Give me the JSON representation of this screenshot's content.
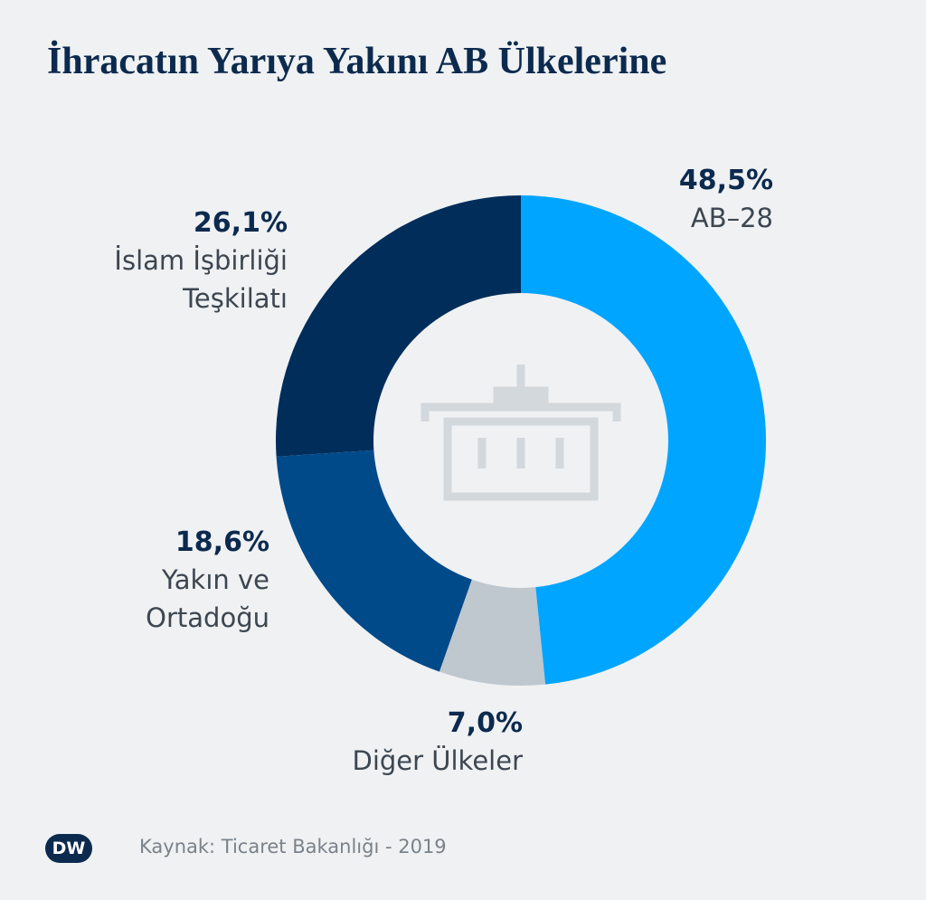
{
  "chart_data": {
    "type": "donut",
    "title": "İhracatın Yarıya Yakını AB Ülkelerine",
    "categories": [
      "AB–28",
      "Diğer Ülkeler",
      "Yakın ve Ortadoğu",
      "İslam İşbirliği Teşkilatı"
    ],
    "values": [
      48.5,
      7.0,
      18.6,
      26.1
    ],
    "value_labels": [
      "48,5%",
      "7,0%",
      "18,6%",
      "26,1%"
    ],
    "colors": [
      "#00a5ff",
      "#bfc7cf",
      "#004a8a",
      "#002d5a"
    ],
    "source": "Kaynak: Ticaret Bakanlığı - 2019",
    "logo": "DW"
  }
}
